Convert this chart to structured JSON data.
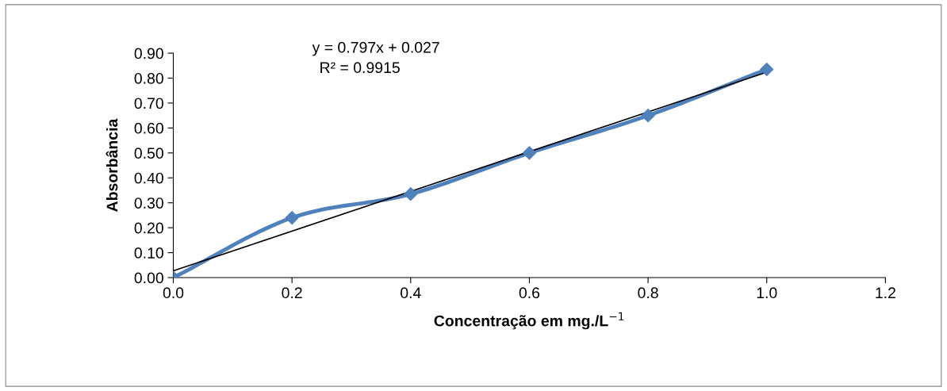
{
  "chart_data": {
    "type": "line",
    "xlabel": "Concentração em mg./L$^{−1}$",
    "ylabel": "Absorbância",
    "annotations": [
      "y = 0.797x + 0.027",
      "R² = 0.9915"
    ],
    "series": [
      {
        "color": "#4f81bd",
        "marker": "diamond",
        "x": [
          0.0,
          0.2,
          0.4,
          0.6,
          0.8,
          1.0
        ],
        "values": [
          0.0,
          0.24,
          0.335,
          0.5,
          0.65,
          0.835
        ]
      },
      {
        "color": "#000000",
        "marker": "none",
        "x": [
          0.0,
          1.0
        ],
        "values": [
          0.027,
          0.824
        ]
      }
    ],
    "xlim": [
      0.0,
      1.2
    ],
    "xticks": [
      {
        "value": 0.0,
        "label": "0.0"
      },
      {
        "value": 0.2,
        "label": "0.2"
      },
      {
        "value": 0.4,
        "label": "0.4"
      },
      {
        "value": 0.6,
        "label": "0.6"
      },
      {
        "value": 0.8,
        "label": "0.8"
      },
      {
        "value": 1.0,
        "label": "1.0"
      },
      {
        "value": 1.2,
        "label": "1.2"
      }
    ],
    "ylim": [
      0.0,
      0.9
    ],
    "yticks": [
      {
        "value": 0.0,
        "label": "0.00"
      },
      {
        "value": 0.1,
        "label": "0.10"
      },
      {
        "value": 0.2,
        "label": "0.20"
      },
      {
        "value": 0.3,
        "label": "0.30"
      },
      {
        "value": 0.4,
        "label": "0.40"
      },
      {
        "value": 0.5,
        "label": "0.50"
      },
      {
        "value": 0.6,
        "label": "0.60"
      },
      {
        "value": 0.7,
        "label": "0.70"
      },
      {
        "value": 0.8,
        "label": "0.80"
      },
      {
        "value": 0.9,
        "label": "0.90"
      }
    ],
    "grid": false,
    "legend": false
  }
}
